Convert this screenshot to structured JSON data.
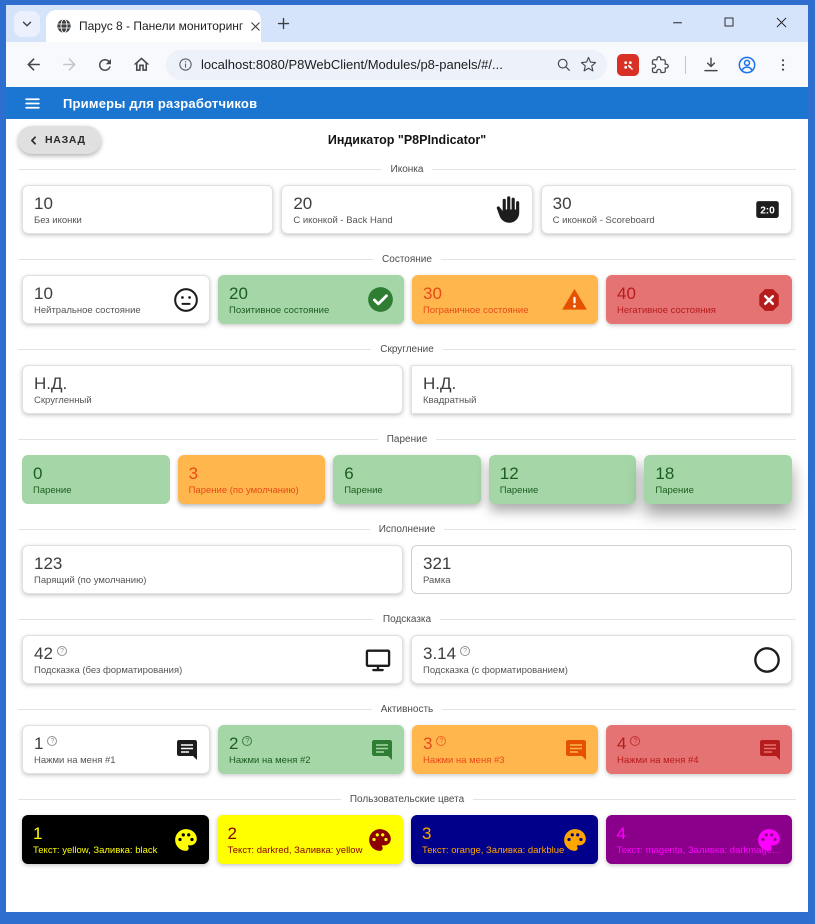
{
  "window": {
    "controls": {
      "minimize": "minimize",
      "maximize": "maximize",
      "close": "close"
    },
    "frame_color": "#2e6ecf"
  },
  "browser": {
    "tab_title": "Парус 8 - Панели мониторинг",
    "url": "localhost:8080/P8WebClient/Modules/p8-panels/#/...",
    "icons": [
      "tab-search-chevron",
      "globe-favicon",
      "tab-close",
      "new-tab-plus",
      "back-arrow",
      "forward-arrow",
      "reload",
      "home",
      "info",
      "zoom-magnifier",
      "bookmark-star",
      "red-extension",
      "extensions-puzzle",
      "download",
      "profile-avatar",
      "kebab-menu"
    ]
  },
  "appbar": {
    "title": "Примеры для разработчиков",
    "accent_color": "#1b76d2"
  },
  "page": {
    "back_button": "НАЗАД",
    "title": "Индикатор \"P8PIndicator\""
  },
  "icons_meta": {
    "scoreboard_text": "2:0",
    "help_glyph": "?"
  },
  "variants": {
    "white": {
      "bg": "#ffffff",
      "fg": "#3d3d3d",
      "label": "#555555",
      "icon": "#1d1d1d",
      "border": "#e0e0e0"
    },
    "green": {
      "bg": "#a5d6a7",
      "fg": "#1b5e20",
      "label": "#1b5e20",
      "icon": "#2e7d32"
    },
    "orange": {
      "bg": "#ffb74d",
      "fg": "#e64a19",
      "label": "#e64a19",
      "icon": "#e65100"
    },
    "red": {
      "bg": "#e57373",
      "fg": "#b71c1c",
      "label": "#b71c1c",
      "icon": "#b71c1c"
    }
  },
  "sections": [
    {
      "label": "Иконка",
      "cards": [
        {
          "value": "10",
          "label": "Без иконки",
          "variant": "white"
        },
        {
          "value": "20",
          "label": "С иконкой - Back Hand",
          "variant": "white",
          "icon": "back-hand-icon"
        },
        {
          "value": "30",
          "label": "С иконкой - Scoreboard",
          "variant": "white",
          "icon": "scoreboard-icon"
        }
      ]
    },
    {
      "label": "Состояние",
      "cards": [
        {
          "value": "10",
          "label": "Нейтральное состояние",
          "variant": "white",
          "icon": "neutral-face-icon"
        },
        {
          "value": "20",
          "label": "Позитивное состояние",
          "variant": "green",
          "icon": "check-circle-icon"
        },
        {
          "value": "30",
          "label": "Пограничное состояние",
          "variant": "orange",
          "icon": "warning-icon"
        },
        {
          "value": "40",
          "label": "Негативное состояния",
          "variant": "red",
          "icon": "cancel-octagon-icon"
        }
      ]
    },
    {
      "label": "Скругление",
      "cards": [
        {
          "value": "Н.Д.",
          "label": "Скругленный",
          "variant": "white",
          "shape": "rounded"
        },
        {
          "value": "Н.Д.",
          "label": "Квадратный",
          "variant": "white",
          "shape": "square"
        }
      ]
    },
    {
      "label": "Парение",
      "cards": [
        {
          "value": "0",
          "label": "Парение",
          "variant": "green",
          "elevation": 0
        },
        {
          "value": "3",
          "label": "Парение (по умолчанию)",
          "variant": "orange",
          "elevation": 3
        },
        {
          "value": "6",
          "label": "Парение",
          "variant": "green",
          "elevation": 6
        },
        {
          "value": "12",
          "label": "Парение",
          "variant": "green",
          "elevation": 12
        },
        {
          "value": "18",
          "label": "Парение",
          "variant": "green",
          "elevation": 18
        }
      ]
    },
    {
      "label": "Исполнение",
      "cards": [
        {
          "value": "123",
          "label": "Парящий (по умолчанию)",
          "variant": "white"
        },
        {
          "value": "321",
          "label": "Рамка",
          "variant": "white",
          "outlined": true
        }
      ]
    },
    {
      "label": "Подсказка",
      "cards": [
        {
          "value": "42",
          "label": "Подсказка (без форматирования)",
          "variant": "white",
          "icon": "monitor-icon",
          "help": true
        },
        {
          "value": "3.14",
          "label": "Подсказка (с форматированием)",
          "variant": "white",
          "icon": "circle-outline-icon",
          "help": true
        }
      ]
    },
    {
      "label": "Активность",
      "cards": [
        {
          "value": "1",
          "label": "Нажми на меня #1",
          "variant": "white",
          "icon": "comment-icon",
          "help": true,
          "interactable": true
        },
        {
          "value": "2",
          "label": "Нажми на меня #2",
          "variant": "green",
          "icon": "comment-icon",
          "help": true,
          "interactable": true
        },
        {
          "value": "3",
          "label": "Нажми на меня #3",
          "variant": "orange",
          "icon": "comment-icon",
          "help": true,
          "interactable": true
        },
        {
          "value": "4",
          "label": "Нажми на меня #4",
          "variant": "red",
          "icon": "comment-icon",
          "help": true,
          "interactable": true
        }
      ]
    },
    {
      "label": "Пользовательские цвета",
      "cards": [
        {
          "value": "1",
          "label": "Текст: yellow, Заливка: black",
          "bg": "#000000",
          "fg": "#ffff00",
          "icon": "palette-icon"
        },
        {
          "value": "2",
          "label": "Текст: darkred, Заливка: yellow",
          "bg": "#ffff00",
          "fg": "#8b0000",
          "icon": "palette-icon"
        },
        {
          "value": "3",
          "label": "Текст: orange, Заливка: darkblue",
          "bg": "#00008b",
          "fg": "#ffa500",
          "icon": "palette-icon"
        },
        {
          "value": "4",
          "label": "Текст: magenta, Заливка: darkmage...",
          "bg": "#8b008b",
          "fg": "#ff00ff",
          "icon": "palette-icon"
        }
      ]
    }
  ]
}
